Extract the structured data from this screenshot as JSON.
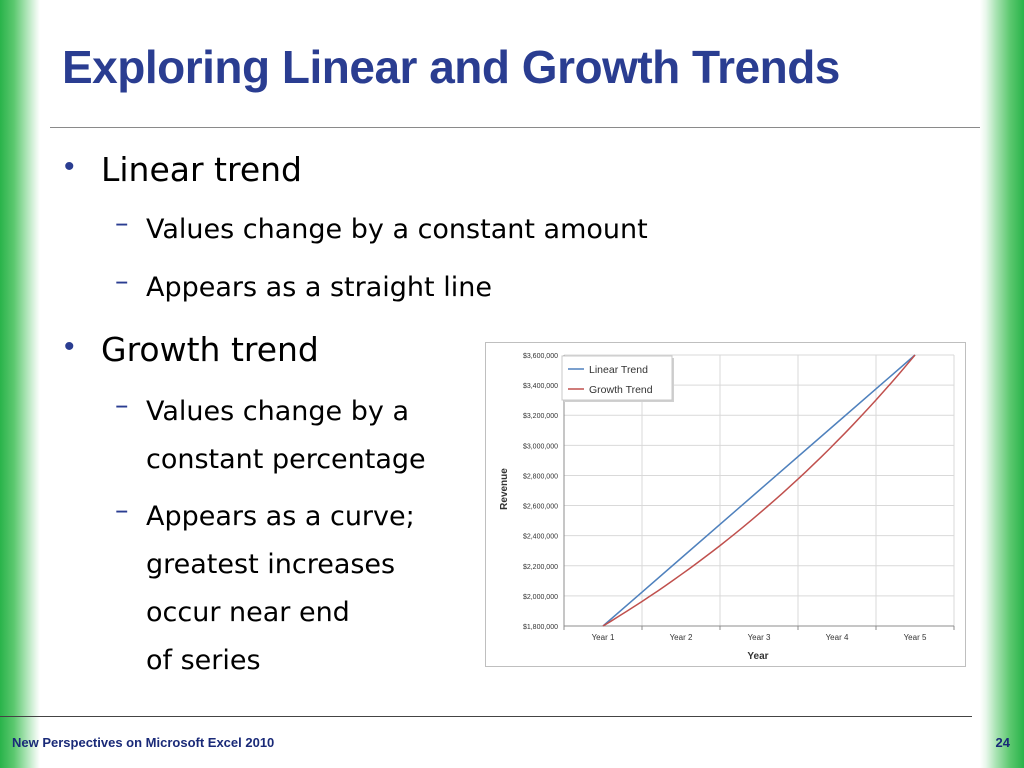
{
  "slide": {
    "title": "Exploring Linear and Growth Trends",
    "bullets": [
      {
        "label": "Linear trend",
        "sub": [
          "Values change by a constant amount",
          "Appears as a straight line"
        ]
      },
      {
        "label": "Growth trend",
        "sub": [
          [
            "Values change by a",
            "constant percentage"
          ],
          [
            "Appears as a curve;",
            "greatest increases",
            "occur near end",
            "of series"
          ]
        ]
      }
    ],
    "bullet_glyph": "•",
    "dash_glyph": "–"
  },
  "footer": {
    "left": "New Perspectives on Microsoft Excel 2010",
    "page_number": "24"
  },
  "colors": {
    "title": "#2a3d91",
    "accent_green": "#29b34a",
    "linear": "#4f81bd",
    "growth": "#c0504d"
  },
  "chart_data": {
    "type": "line",
    "xlabel": "Year",
    "ylabel": "Revenue",
    "categories": [
      "Year 1",
      "Year 2",
      "Year 3",
      "Year 4",
      "Year 5"
    ],
    "ylim": [
      1800000,
      3600000
    ],
    "yticks": [
      "$1,800,000",
      "$2,000,000",
      "$2,200,000",
      "$2,400,000",
      "$2,600,000",
      "$2,800,000",
      "$3,000,000",
      "$3,200,000",
      "$3,400,000",
      "$3,600,000"
    ],
    "legend": "top-left",
    "grid": true,
    "series": [
      {
        "name": "Linear Trend",
        "color": "#4f81bd",
        "values": [
          1800000,
          2250000,
          2700000,
          3150000,
          3600000
        ]
      },
      {
        "name": "Growth Trend",
        "color": "#c0504d",
        "values": [
          1800000,
          2140000,
          2550000,
          3030000,
          3600000
        ]
      }
    ]
  }
}
